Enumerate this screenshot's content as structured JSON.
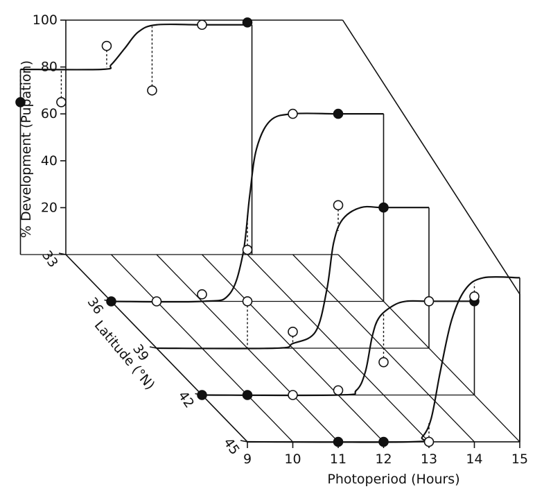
{
  "chart_data": {
    "type": "line",
    "subtype": "3d-ribbon",
    "x_axis": {
      "label": "Photoperiod (Hours)",
      "ticks": [
        9,
        10,
        11,
        12,
        13,
        14,
        15
      ],
      "range": [
        9,
        15
      ]
    },
    "y_axis": {
      "label": "% Development (Pupation)",
      "ticks": [
        20,
        40,
        60,
        80,
        100
      ],
      "range": [
        0,
        100
      ]
    },
    "depth_axis": {
      "label": "Latitude (°N)",
      "ticks": [
        33,
        36,
        39,
        42,
        45
      ]
    },
    "series": [
      {
        "latitude": 33,
        "curve": [
          [
            8.0,
            79
          ],
          [
            9.8,
            79
          ],
          [
            10.0,
            81
          ],
          [
            10.3,
            88
          ],
          [
            10.6,
            95
          ],
          [
            11.0,
            98
          ],
          [
            12.0,
            98
          ],
          [
            13.1,
            98
          ]
        ],
        "drop_hours": [
          8.0,
          13.1
        ],
        "points": [
          {
            "x": 8.0,
            "y": 65,
            "filled": true
          },
          {
            "x": 8.9,
            "y": 65,
            "filled": false
          },
          {
            "x": 9.9,
            "y": 89,
            "filled": false
          },
          {
            "x": 10.9,
            "y": 70,
            "filled": false
          },
          {
            "x": 12.0,
            "y": 98,
            "filled": false
          },
          {
            "x": 13.0,
            "y": 99,
            "filled": true
          }
        ]
      },
      {
        "latitude": 36,
        "curve": [
          [
            9.0,
            0
          ],
          [
            11.0,
            0
          ],
          [
            11.6,
            3
          ],
          [
            11.9,
            20
          ],
          [
            12.05,
            45
          ],
          [
            12.2,
            65
          ],
          [
            12.5,
            77
          ],
          [
            13.0,
            80
          ],
          [
            14.0,
            80
          ],
          [
            15.0,
            80
          ]
        ],
        "drop_hours": [
          9.0,
          15.0
        ],
        "points": [
          {
            "x": 9.0,
            "y": 0,
            "filled": true
          },
          {
            "x": 10.0,
            "y": 0,
            "filled": false
          },
          {
            "x": 11.0,
            "y": 3,
            "filled": false
          },
          {
            "x": 12.0,
            "y": 22,
            "filled": false
          },
          {
            "x": 13.0,
            "y": 80,
            "filled": false
          },
          {
            "x": 14.0,
            "y": 80,
            "filled": true
          }
        ]
      },
      {
        "latitude": 39,
        "curve": [
          [
            9.0,
            0
          ],
          [
            11.6,
            0
          ],
          [
            12.0,
            2
          ],
          [
            12.5,
            7
          ],
          [
            12.75,
            25
          ],
          [
            12.9,
            45
          ],
          [
            13.1,
            55
          ],
          [
            13.5,
            60
          ],
          [
            14.0,
            60
          ],
          [
            15.0,
            60
          ]
        ],
        "drop_hours": [
          15.0
        ],
        "points": [
          {
            "x": 11.0,
            "y": 20,
            "filled": false
          },
          {
            "x": 12.0,
            "y": 7,
            "filled": false
          },
          {
            "x": 13.0,
            "y": 61,
            "filled": false
          },
          {
            "x": 14.0,
            "y": 60,
            "filled": true
          }
        ]
      },
      {
        "latitude": 42,
        "curve": [
          [
            9.0,
            0
          ],
          [
            12.0,
            0
          ],
          [
            12.4,
            2
          ],
          [
            12.6,
            10
          ],
          [
            12.75,
            25
          ],
          [
            12.9,
            33
          ],
          [
            13.2,
            38
          ],
          [
            13.5,
            40
          ],
          [
            14.0,
            40
          ],
          [
            15.0,
            40
          ]
        ],
        "drop_hours": [
          15.0
        ],
        "points": [
          {
            "x": 9.0,
            "y": 0,
            "filled": true
          },
          {
            "x": 10.0,
            "y": 0,
            "filled": true
          },
          {
            "x": 11.0,
            "y": 0,
            "filled": false
          },
          {
            "x": 12.0,
            "y": 2,
            "filled": false
          },
          {
            "x": 13.0,
            "y": 14,
            "filled": false
          },
          {
            "x": 14.0,
            "y": 40,
            "filled": false
          },
          {
            "x": 15.0,
            "y": 40,
            "filled": true
          }
        ]
      },
      {
        "latitude": 45,
        "curve": [
          [
            9.0,
            0
          ],
          [
            12.6,
            0
          ],
          [
            12.85,
            2
          ],
          [
            13.05,
            10
          ],
          [
            13.25,
            30
          ],
          [
            13.5,
            52
          ],
          [
            13.8,
            65
          ],
          [
            14.2,
            70
          ],
          [
            15.0,
            70
          ]
        ],
        "drop_hours": [
          15.0
        ],
        "points": [
          {
            "x": 11.0,
            "y": 0,
            "filled": true
          },
          {
            "x": 12.0,
            "y": 0,
            "filled": true
          },
          {
            "x": 13.0,
            "y": 0,
            "filled": false
          },
          {
            "x": 14.0,
            "y": 62,
            "filled": false
          }
        ]
      }
    ],
    "grid": "baseline hatching on floor",
    "legend": "none",
    "colors": {
      "ink": "#111111",
      "background": "#ffffff"
    }
  }
}
